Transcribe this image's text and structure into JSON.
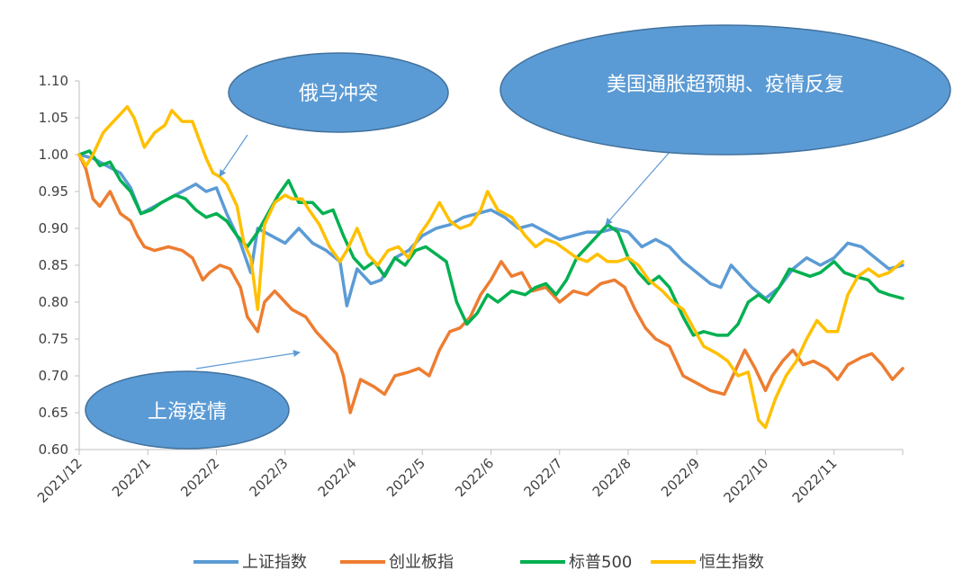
{
  "chart_data": {
    "type": "line",
    "title": "",
    "xlabel": "",
    "ylabel": "",
    "x_ticks": [
      "2021/12",
      "2022/1",
      "2022/2",
      "2022/3",
      "2022/4",
      "2022/5",
      "2022/6",
      "2022/7",
      "2022/8",
      "2022/9",
      "2022/10",
      "2022/11"
    ],
    "y_ticks": [
      "0.60",
      "0.65",
      "0.70",
      "0.75",
      "0.80",
      "0.85",
      "0.90",
      "0.95",
      "1.00",
      "1.05",
      "1.10"
    ],
    "ylim": [
      0.6,
      1.1
    ],
    "xlim": [
      0,
      12
    ],
    "grid": false,
    "legend_position": "bottom",
    "series": [
      {
        "name": "上证指数",
        "color": "#5B9BD5",
        "points": [
          [
            0,
            1.0
          ],
          [
            0.2,
            0.995
          ],
          [
            0.4,
            0.985
          ],
          [
            0.6,
            0.975
          ],
          [
            0.75,
            0.955
          ],
          [
            0.9,
            0.92
          ],
          [
            1.1,
            0.93
          ],
          [
            1.3,
            0.94
          ],
          [
            1.5,
            0.95
          ],
          [
            1.7,
            0.96
          ],
          [
            1.85,
            0.95
          ],
          [
            2.0,
            0.955
          ],
          [
            2.15,
            0.92
          ],
          [
            2.35,
            0.88
          ],
          [
            2.5,
            0.84
          ],
          [
            2.6,
            0.9
          ],
          [
            2.8,
            0.89
          ],
          [
            3.0,
            0.88
          ],
          [
            3.2,
            0.9
          ],
          [
            3.4,
            0.88
          ],
          [
            3.6,
            0.87
          ],
          [
            3.8,
            0.855
          ],
          [
            3.9,
            0.795
          ],
          [
            4.05,
            0.845
          ],
          [
            4.25,
            0.825
          ],
          [
            4.4,
            0.83
          ],
          [
            4.6,
            0.86
          ],
          [
            4.8,
            0.87
          ],
          [
            5.0,
            0.89
          ],
          [
            5.2,
            0.9
          ],
          [
            5.4,
            0.905
          ],
          [
            5.6,
            0.915
          ],
          [
            5.8,
            0.92
          ],
          [
            6.0,
            0.925
          ],
          [
            6.2,
            0.915
          ],
          [
            6.4,
            0.9
          ],
          [
            6.6,
            0.905
          ],
          [
            6.8,
            0.895
          ],
          [
            7.0,
            0.885
          ],
          [
            7.2,
            0.89
          ],
          [
            7.4,
            0.895
          ],
          [
            7.6,
            0.895
          ],
          [
            7.8,
            0.9
          ],
          [
            8.0,
            0.895
          ],
          [
            8.2,
            0.875
          ],
          [
            8.4,
            0.885
          ],
          [
            8.6,
            0.875
          ],
          [
            8.8,
            0.855
          ],
          [
            9.0,
            0.84
          ],
          [
            9.2,
            0.825
          ],
          [
            9.35,
            0.82
          ],
          [
            9.5,
            0.85
          ],
          [
            9.65,
            0.835
          ],
          [
            9.8,
            0.82
          ],
          [
            10.0,
            0.805
          ],
          [
            10.2,
            0.82
          ],
          [
            10.4,
            0.845
          ],
          [
            10.6,
            0.86
          ],
          [
            10.8,
            0.85
          ],
          [
            11.0,
            0.86
          ],
          [
            11.2,
            0.88
          ],
          [
            11.4,
            0.875
          ],
          [
            11.6,
            0.86
          ],
          [
            11.8,
            0.845
          ],
          [
            12.0,
            0.85
          ]
        ]
      },
      {
        "name": "创业板指",
        "color": "#ED7D31",
        "points": [
          [
            0,
            1.0
          ],
          [
            0.1,
            0.98
          ],
          [
            0.2,
            0.94
          ],
          [
            0.3,
            0.93
          ],
          [
            0.45,
            0.95
          ],
          [
            0.6,
            0.92
          ],
          [
            0.75,
            0.91
          ],
          [
            0.85,
            0.89
          ],
          [
            0.95,
            0.875
          ],
          [
            1.1,
            0.87
          ],
          [
            1.3,
            0.875
          ],
          [
            1.5,
            0.87
          ],
          [
            1.65,
            0.86
          ],
          [
            1.8,
            0.83
          ],
          [
            1.9,
            0.84
          ],
          [
            2.05,
            0.85
          ],
          [
            2.2,
            0.845
          ],
          [
            2.35,
            0.82
          ],
          [
            2.45,
            0.78
          ],
          [
            2.6,
            0.76
          ],
          [
            2.7,
            0.8
          ],
          [
            2.85,
            0.815
          ],
          [
            3.0,
            0.8
          ],
          [
            3.1,
            0.79
          ],
          [
            3.3,
            0.78
          ],
          [
            3.45,
            0.76
          ],
          [
            3.6,
            0.745
          ],
          [
            3.75,
            0.73
          ],
          [
            3.85,
            0.7
          ],
          [
            3.95,
            0.65
          ],
          [
            4.1,
            0.695
          ],
          [
            4.3,
            0.685
          ],
          [
            4.45,
            0.675
          ],
          [
            4.6,
            0.7
          ],
          [
            4.8,
            0.705
          ],
          [
            4.95,
            0.71
          ],
          [
            5.1,
            0.7
          ],
          [
            5.25,
            0.735
          ],
          [
            5.4,
            0.76
          ],
          [
            5.55,
            0.765
          ],
          [
            5.7,
            0.78
          ],
          [
            5.85,
            0.81
          ],
          [
            6.0,
            0.83
          ],
          [
            6.15,
            0.855
          ],
          [
            6.3,
            0.835
          ],
          [
            6.45,
            0.84
          ],
          [
            6.6,
            0.815
          ],
          [
            6.8,
            0.82
          ],
          [
            7.0,
            0.8
          ],
          [
            7.2,
            0.815
          ],
          [
            7.4,
            0.81
          ],
          [
            7.6,
            0.825
          ],
          [
            7.8,
            0.83
          ],
          [
            7.95,
            0.82
          ],
          [
            8.1,
            0.79
          ],
          [
            8.25,
            0.765
          ],
          [
            8.4,
            0.75
          ],
          [
            8.6,
            0.74
          ],
          [
            8.8,
            0.7
          ],
          [
            9.0,
            0.69
          ],
          [
            9.2,
            0.68
          ],
          [
            9.4,
            0.675
          ],
          [
            9.55,
            0.705
          ],
          [
            9.7,
            0.735
          ],
          [
            9.85,
            0.71
          ],
          [
            10.0,
            0.68
          ],
          [
            10.1,
            0.7
          ],
          [
            10.25,
            0.72
          ],
          [
            10.4,
            0.735
          ],
          [
            10.55,
            0.715
          ],
          [
            10.7,
            0.72
          ],
          [
            10.9,
            0.71
          ],
          [
            11.05,
            0.695
          ],
          [
            11.2,
            0.715
          ],
          [
            11.4,
            0.725
          ],
          [
            11.55,
            0.73
          ],
          [
            11.7,
            0.715
          ],
          [
            11.85,
            0.695
          ],
          [
            12.0,
            0.71
          ]
        ]
      },
      {
        "name": "标普500",
        "color": "#00B050",
        "points": [
          [
            0,
            1.0
          ],
          [
            0.15,
            1.005
          ],
          [
            0.3,
            0.985
          ],
          [
            0.45,
            0.99
          ],
          [
            0.6,
            0.965
          ],
          [
            0.75,
            0.95
          ],
          [
            0.9,
            0.92
          ],
          [
            1.05,
            0.925
          ],
          [
            1.2,
            0.935
          ],
          [
            1.4,
            0.945
          ],
          [
            1.55,
            0.94
          ],
          [
            1.7,
            0.925
          ],
          [
            1.85,
            0.915
          ],
          [
            2.0,
            0.92
          ],
          [
            2.15,
            0.91
          ],
          [
            2.3,
            0.89
          ],
          [
            2.45,
            0.875
          ],
          [
            2.6,
            0.895
          ],
          [
            2.75,
            0.92
          ],
          [
            2.9,
            0.945
          ],
          [
            3.05,
            0.965
          ],
          [
            3.2,
            0.935
          ],
          [
            3.4,
            0.935
          ],
          [
            3.55,
            0.92
          ],
          [
            3.7,
            0.925
          ],
          [
            3.85,
            0.89
          ],
          [
            4.0,
            0.86
          ],
          [
            4.15,
            0.845
          ],
          [
            4.3,
            0.855
          ],
          [
            4.45,
            0.835
          ],
          [
            4.6,
            0.86
          ],
          [
            4.75,
            0.85
          ],
          [
            4.9,
            0.87
          ],
          [
            5.05,
            0.875
          ],
          [
            5.2,
            0.865
          ],
          [
            5.35,
            0.855
          ],
          [
            5.5,
            0.8
          ],
          [
            5.65,
            0.77
          ],
          [
            5.8,
            0.785
          ],
          [
            5.95,
            0.81
          ],
          [
            6.1,
            0.8
          ],
          [
            6.3,
            0.815
          ],
          [
            6.5,
            0.81
          ],
          [
            6.65,
            0.82
          ],
          [
            6.8,
            0.825
          ],
          [
            6.95,
            0.81
          ],
          [
            7.1,
            0.83
          ],
          [
            7.25,
            0.86
          ],
          [
            7.4,
            0.875
          ],
          [
            7.55,
            0.89
          ],
          [
            7.7,
            0.905
          ],
          [
            7.85,
            0.895
          ],
          [
            8.0,
            0.86
          ],
          [
            8.15,
            0.84
          ],
          [
            8.3,
            0.825
          ],
          [
            8.45,
            0.835
          ],
          [
            8.6,
            0.82
          ],
          [
            8.8,
            0.78
          ],
          [
            8.95,
            0.755
          ],
          [
            9.1,
            0.76
          ],
          [
            9.3,
            0.755
          ],
          [
            9.45,
            0.755
          ],
          [
            9.6,
            0.77
          ],
          [
            9.75,
            0.8
          ],
          [
            9.9,
            0.81
          ],
          [
            10.05,
            0.8
          ],
          [
            10.2,
            0.82
          ],
          [
            10.35,
            0.845
          ],
          [
            10.5,
            0.84
          ],
          [
            10.65,
            0.835
          ],
          [
            10.8,
            0.84
          ],
          [
            11.0,
            0.855
          ],
          [
            11.15,
            0.84
          ],
          [
            11.3,
            0.835
          ],
          [
            11.5,
            0.83
          ],
          [
            11.65,
            0.815
          ],
          [
            11.8,
            0.81
          ],
          [
            12.0,
            0.805
          ]
        ]
      },
      {
        "name": "恒生指数",
        "color": "#FFC000",
        "points": [
          [
            0,
            1.0
          ],
          [
            0.1,
            0.985
          ],
          [
            0.2,
            1.0
          ],
          [
            0.35,
            1.03
          ],
          [
            0.5,
            1.045
          ],
          [
            0.6,
            1.055
          ],
          [
            0.7,
            1.065
          ],
          [
            0.8,
            1.05
          ],
          [
            0.95,
            1.01
          ],
          [
            1.1,
            1.03
          ],
          [
            1.25,
            1.04
          ],
          [
            1.35,
            1.06
          ],
          [
            1.5,
            1.045
          ],
          [
            1.65,
            1.045
          ],
          [
            1.75,
            1.02
          ],
          [
            1.85,
            0.995
          ],
          [
            1.95,
            0.975
          ],
          [
            2.05,
            0.97
          ],
          [
            2.15,
            0.96
          ],
          [
            2.3,
            0.93
          ],
          [
            2.4,
            0.88
          ],
          [
            2.5,
            0.86
          ],
          [
            2.6,
            0.79
          ],
          [
            2.7,
            0.905
          ],
          [
            2.85,
            0.935
          ],
          [
            3.0,
            0.945
          ],
          [
            3.1,
            0.94
          ],
          [
            3.25,
            0.94
          ],
          [
            3.35,
            0.925
          ],
          [
            3.5,
            0.905
          ],
          [
            3.65,
            0.875
          ],
          [
            3.8,
            0.855
          ],
          [
            3.9,
            0.87
          ],
          [
            4.05,
            0.9
          ],
          [
            4.2,
            0.865
          ],
          [
            4.35,
            0.85
          ],
          [
            4.5,
            0.87
          ],
          [
            4.65,
            0.875
          ],
          [
            4.8,
            0.86
          ],
          [
            4.95,
            0.89
          ],
          [
            5.1,
            0.91
          ],
          [
            5.25,
            0.935
          ],
          [
            5.4,
            0.91
          ],
          [
            5.55,
            0.9
          ],
          [
            5.7,
            0.905
          ],
          [
            5.85,
            0.925
          ],
          [
            5.95,
            0.95
          ],
          [
            6.1,
            0.925
          ],
          [
            6.3,
            0.915
          ],
          [
            6.5,
            0.89
          ],
          [
            6.65,
            0.875
          ],
          [
            6.8,
            0.885
          ],
          [
            6.95,
            0.88
          ],
          [
            7.1,
            0.87
          ],
          [
            7.25,
            0.86
          ],
          [
            7.4,
            0.855
          ],
          [
            7.55,
            0.865
          ],
          [
            7.7,
            0.855
          ],
          [
            7.85,
            0.855
          ],
          [
            8.0,
            0.86
          ],
          [
            8.15,
            0.85
          ],
          [
            8.3,
            0.83
          ],
          [
            8.5,
            0.815
          ],
          [
            8.65,
            0.8
          ],
          [
            8.8,
            0.79
          ],
          [
            8.95,
            0.765
          ],
          [
            9.1,
            0.74
          ],
          [
            9.3,
            0.73
          ],
          [
            9.45,
            0.72
          ],
          [
            9.6,
            0.7
          ],
          [
            9.75,
            0.705
          ],
          [
            9.9,
            0.64
          ],
          [
            10.0,
            0.63
          ],
          [
            10.15,
            0.67
          ],
          [
            10.3,
            0.7
          ],
          [
            10.45,
            0.72
          ],
          [
            10.6,
            0.75
          ],
          [
            10.75,
            0.775
          ],
          [
            10.9,
            0.76
          ],
          [
            11.05,
            0.76
          ],
          [
            11.2,
            0.81
          ],
          [
            11.35,
            0.835
          ],
          [
            11.5,
            0.845
          ],
          [
            11.65,
            0.835
          ],
          [
            11.8,
            0.84
          ],
          [
            12.0,
            0.855
          ]
        ]
      }
    ],
    "annotations": [
      {
        "text": "俄乌冲突",
        "target": [
          2.05,
          0.975
        ]
      },
      {
        "text": "美国通胀超预期、疫情反复",
        "target": [
          7.65,
          0.905
        ]
      },
      {
        "text": "上海疫情",
        "target": [
          3.2,
          0.735
        ]
      }
    ]
  }
}
